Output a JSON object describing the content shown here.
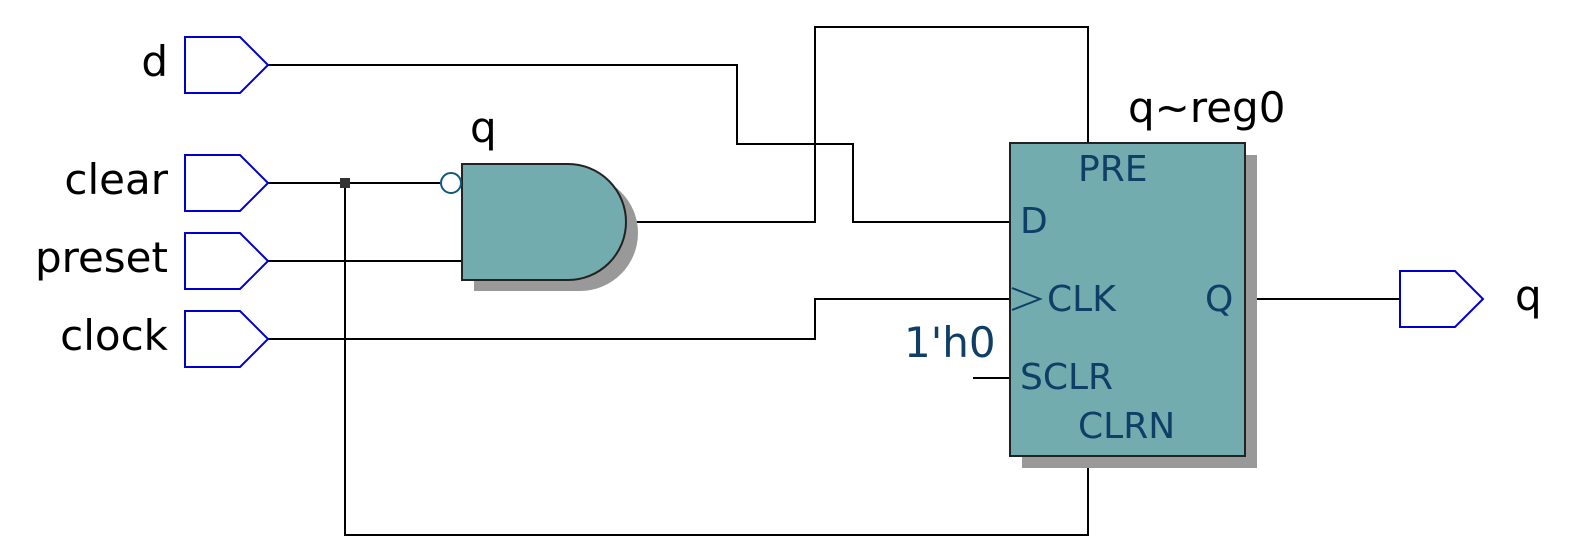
{
  "colors": {
    "wire": "#000000",
    "port_outline": "#0000cc",
    "block_fill": "#73acae",
    "block_shadow": "#999999",
    "pin_text": "#0f3f66"
  },
  "inputs": [
    {
      "name": "d"
    },
    {
      "name": "clear"
    },
    {
      "name": "preset"
    },
    {
      "name": "clock"
    }
  ],
  "output": {
    "name": "q"
  },
  "gate": {
    "type": "and",
    "label": "q",
    "inverted_input": "clear"
  },
  "register": {
    "label": "q~reg0",
    "pins": {
      "pre": "PRE",
      "d": "D",
      "clk": "CLK",
      "q": "Q",
      "sclr": "SCLR",
      "clrn": "CLRN"
    },
    "sclr_constant": "1'h0"
  }
}
